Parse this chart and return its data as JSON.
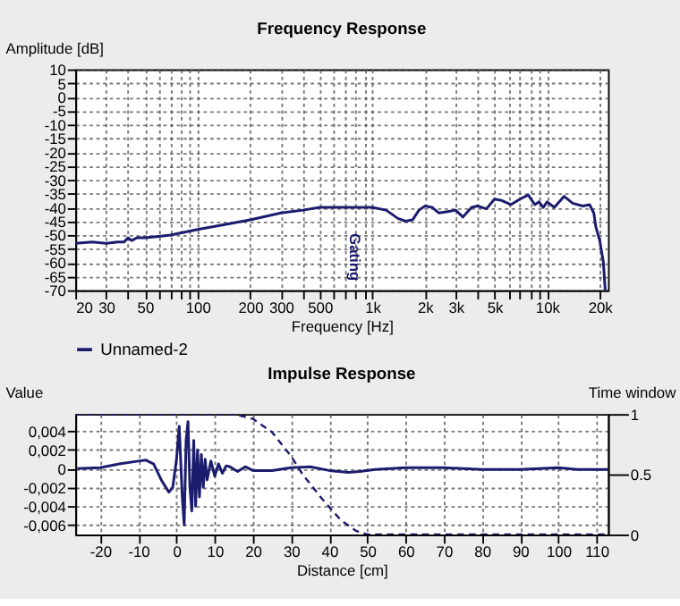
{
  "chart_data": [
    {
      "type": "line",
      "title": "Frequency Response",
      "xlabel": "Frequency [Hz]",
      "ylabel": "Amplitude [dB]",
      "log": "x",
      "grid": true,
      "legend": "bottom left",
      "marker": "none",
      "xlim": [
        20,
        22300
      ],
      "ylim": [
        -70,
        10
      ],
      "xticks": [
        20,
        30,
        {
          "value": 40,
          "label": null
        },
        50,
        {
          "value": 60,
          "label": null
        },
        {
          "value": 70,
          "label": null
        },
        {
          "value": 80,
          "label": null
        },
        {
          "value": 90,
          "label": null
        },
        100,
        200,
        300,
        {
          "value": 400,
          "label": null
        },
        500,
        {
          "value": 600,
          "label": null
        },
        {
          "value": 700,
          "label": null
        },
        {
          "value": 800,
          "label": null
        },
        {
          "value": 900,
          "label": null
        },
        {
          "value": 1000,
          "label": "1k"
        },
        {
          "value": 2000,
          "label": "2k"
        },
        {
          "value": 3000,
          "label": "3k"
        },
        {
          "value": 4000,
          "label": null
        },
        {
          "value": 5000,
          "label": "5k"
        },
        {
          "value": 6000,
          "label": null
        },
        {
          "value": 7000,
          "label": null
        },
        {
          "value": 8000,
          "label": null
        },
        {
          "value": 9000,
          "label": null
        },
        {
          "value": 10000,
          "label": "10k"
        },
        {
          "value": 20000,
          "label": "20k"
        }
      ],
      "yticks": [
        10,
        5,
        0,
        -5,
        -10,
        -15,
        -20,
        -25,
        -30,
        -35,
        -40,
        -45,
        -50,
        -55,
        -60,
        -65,
        -70
      ],
      "annotations": [
        "Gating"
      ],
      "series": [
        {
          "name": "Unnamed-2",
          "color": "#1c1c6e",
          "line_style": "solid",
          "x": [
            20,
            25,
            30,
            35,
            38,
            40,
            42,
            45,
            50,
            60,
            70,
            100,
            150,
            200,
            300,
            400,
            500,
            700,
            1000,
            1200,
            1400,
            1550,
            1700,
            1850,
            2000,
            2200,
            2400,
            2700,
            3000,
            3300,
            3700,
            4000,
            4500,
            5000,
            5500,
            6200,
            7000,
            7800,
            8500,
            9000,
            9500,
            10000,
            11000,
            12500,
            14000,
            16000,
            17500,
            18500,
            19000,
            20000,
            21000,
            21500
          ],
          "values": [
            -53,
            -52.5,
            -53,
            -52.5,
            -52.5,
            -51,
            -52,
            -51,
            -51,
            -50.5,
            -50,
            -48,
            -46,
            -44.5,
            -42,
            -41,
            -40,
            -40,
            -40,
            -41,
            -44,
            -45,
            -44.5,
            -41,
            -39.5,
            -40,
            -42,
            -41.5,
            -41,
            -43.5,
            -40,
            -39.5,
            -40.5,
            -37,
            -37.5,
            -39,
            -37,
            -35.5,
            -39,
            -38,
            -40,
            -38,
            -40,
            -36,
            -38.5,
            -39.5,
            -39,
            -42,
            -47,
            -52,
            -60,
            -70
          ]
        }
      ]
    },
    {
      "type": "line",
      "title": "Impulse Response",
      "xlabel": "Distance [cm]",
      "ylabel": "Value",
      "y2label": "Time window",
      "grid": true,
      "marker": "none",
      "xlim": [
        -26.5,
        113
      ],
      "ylim": [
        -0.007,
        0.0058
      ],
      "y2lim": [
        0,
        1
      ],
      "xticks": [
        -20,
        -10,
        0,
        10,
        20,
        30,
        40,
        50,
        60,
        70,
        80,
        90,
        100,
        110
      ],
      "yticks": [
        {
          "value": 0.004,
          "label": "0,004"
        },
        {
          "value": 0.002,
          "label": "0,002"
        },
        0,
        {
          "value": -0.002,
          "label": "-0,002"
        },
        {
          "value": -0.004,
          "label": "-0,004"
        },
        {
          "value": -0.006,
          "label": "-0,006"
        }
      ],
      "y2ticks": [
        0,
        0.5,
        1
      ],
      "series": [
        {
          "color": "#1c1c6e",
          "line_style": "solid",
          "x": [
            -26,
            -20,
            -15,
            -10,
            -8,
            -6,
            -4,
            -2,
            -1,
            0,
            0.7,
            1.5,
            2,
            2.5,
            3,
            3.5,
            4,
            4.5,
            5,
            5.5,
            6,
            6.5,
            7,
            7.5,
            8,
            9,
            10,
            11,
            12,
            13,
            14,
            16,
            18,
            20,
            25,
            30,
            35,
            40,
            45,
            48,
            52,
            60,
            70,
            80,
            90,
            100,
            105,
            113
          ],
          "values": [
            0,
            0.0001,
            0.0005,
            0.0008,
            0.0009,
            0.0005,
            -0.0012,
            -0.0025,
            -0.002,
            0.001,
            0.0045,
            -0.003,
            -0.006,
            0.003,
            0.005,
            -0.002,
            -0.0045,
            0.003,
            -0.004,
            0.002,
            -0.003,
            0.0015,
            -0.002,
            0.001,
            -0.0012,
            0.0008,
            -0.0008,
            0.0005,
            -0.0005,
            0.0003,
            0.0002,
            -0.0003,
            0.0002,
            -0.0002,
            -0.0002,
            0.0001,
            0.0002,
            -0.0002,
            -0.0004,
            -0.0003,
            -0.0001,
            0.0001,
            0.0001,
            -0.0001,
            -0.0001,
            0.0001,
            -0.0001,
            -0.0001
          ]
        },
        {
          "color": "#1c1c6e",
          "line_style": "dashed",
          "axis": "y2",
          "x": [
            -26.5,
            15,
            20,
            25,
            30,
            33,
            38,
            43,
            47,
            50,
            113
          ],
          "values": [
            1,
            1,
            0.96,
            0.85,
            0.65,
            0.5,
            0.3,
            0.12,
            0.03,
            0,
            0
          ]
        }
      ]
    }
  ]
}
